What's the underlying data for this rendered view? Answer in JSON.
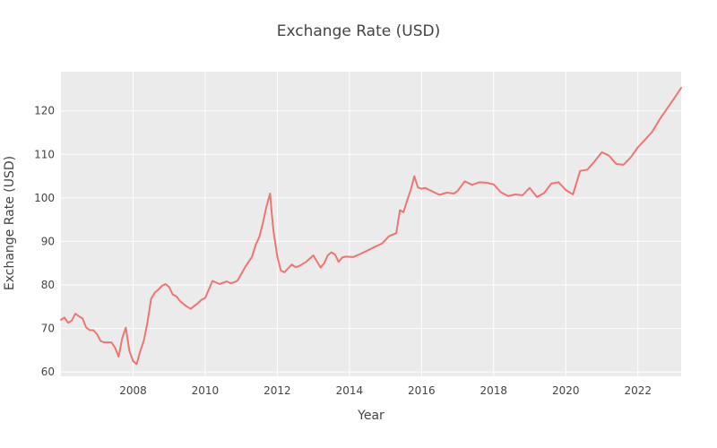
{
  "chart_data": {
    "type": "line",
    "title": "Exchange Rate (USD)",
    "xlabel": "Year",
    "ylabel": "Exchange Rate (USD)",
    "xlim": [
      2006.0,
      2023.2
    ],
    "ylim": [
      59,
      129
    ],
    "x_ticks": [
      2008,
      2010,
      2012,
      2014,
      2016,
      2018,
      2020,
      2022
    ],
    "x_tick_labels": [
      "2008",
      "2010",
      "2012",
      "2014",
      "2016",
      "2018",
      "2020",
      "2022"
    ],
    "y_ticks": [
      60,
      70,
      80,
      90,
      100,
      110,
      120
    ],
    "y_tick_labels": [
      "60",
      "70",
      "80",
      "90",
      "100",
      "110",
      "120"
    ],
    "grid": true,
    "colors": {
      "plot_background": "#ebebeb",
      "series": "#f07472",
      "grid": "#ffffff"
    },
    "series": [
      {
        "name": "Exchange Rate (USD)",
        "x": [
          2006.0,
          2006.1,
          2006.2,
          2006.3,
          2006.4,
          2006.5,
          2006.6,
          2006.7,
          2006.8,
          2006.9,
          2007.0,
          2007.1,
          2007.2,
          2007.3,
          2007.4,
          2007.5,
          2007.6,
          2007.7,
          2007.8,
          2007.9,
          2008.0,
          2008.1,
          2008.2,
          2008.3,
          2008.4,
          2008.5,
          2008.6,
          2008.7,
          2008.8,
          2008.9,
          2009.0,
          2009.1,
          2009.2,
          2009.3,
          2009.4,
          2009.5,
          2009.6,
          2009.7,
          2009.8,
          2009.9,
          2010.0,
          2010.2,
          2010.4,
          2010.6,
          2010.7,
          2010.8,
          2010.9,
          2011.1,
          2011.3,
          2011.4,
          2011.5,
          2011.6,
          2011.7,
          2011.8,
          2011.85,
          2011.9,
          2012.0,
          2012.1,
          2012.2,
          2012.3,
          2012.4,
          2012.5,
          2012.6,
          2012.8,
          2013.0,
          2013.2,
          2013.3,
          2013.4,
          2013.5,
          2013.6,
          2013.7,
          2013.8,
          2013.9,
          2014.1,
          2014.3,
          2014.5,
          2014.7,
          2014.9,
          2015.1,
          2015.3,
          2015.4,
          2015.5,
          2015.6,
          2015.7,
          2015.8,
          2015.9,
          2016.0,
          2016.1,
          2016.3,
          2016.5,
          2016.7,
          2016.9,
          2017.0,
          2017.2,
          2017.4,
          2017.6,
          2017.8,
          2018.0,
          2018.2,
          2018.4,
          2018.6,
          2018.8,
          2019.0,
          2019.2,
          2019.4,
          2019.6,
          2019.8,
          2020.0,
          2020.2,
          2020.4,
          2020.6,
          2020.8,
          2021.0,
          2021.2,
          2021.4,
          2021.6,
          2021.8,
          2022.0,
          2022.2,
          2022.4,
          2022.6,
          2022.8,
          2023.0,
          2023.2
        ],
        "y": [
          72.0,
          72.5,
          71.3,
          71.8,
          73.4,
          72.8,
          72.3,
          70.2,
          69.6,
          69.6,
          68.7,
          67.1,
          66.8,
          66.8,
          66.8,
          65.6,
          63.5,
          67.8,
          70.2,
          64.8,
          62.5,
          61.8,
          64.8,
          67.2,
          71.5,
          76.8,
          78.2,
          78.9,
          79.8,
          80.2,
          79.5,
          77.8,
          77.4,
          76.3,
          75.6,
          75.0,
          74.5,
          75.2,
          75.8,
          76.6,
          77.0,
          80.9,
          80.2,
          80.8,
          80.4,
          80.6,
          81.0,
          84.0,
          86.5,
          89.2,
          91.0,
          94.2,
          98.0,
          101.0,
          96.0,
          92.0,
          86.5,
          83.3,
          82.9,
          83.8,
          84.7,
          84.1,
          84.3,
          85.3,
          86.8,
          84.0,
          85.0,
          86.8,
          87.5,
          87.0,
          85.3,
          86.3,
          86.5,
          86.4,
          87.1,
          87.9,
          88.7,
          89.5,
          91.2,
          91.9,
          97.2,
          96.7,
          99.4,
          101.8,
          105.0,
          102.4,
          102.1,
          102.3,
          101.5,
          100.7,
          101.2,
          101.0,
          101.6,
          103.8,
          103.0,
          103.6,
          103.5,
          103.1,
          101.3,
          100.4,
          100.8,
          100.6,
          102.3,
          100.2,
          101.1,
          103.3,
          103.6,
          101.8,
          100.8,
          106.2,
          106.5,
          108.4,
          110.5,
          109.7,
          107.8,
          107.6,
          109.3,
          111.6,
          113.4,
          115.2,
          118.0,
          120.4,
          122.8,
          125.3
        ]
      }
    ]
  }
}
